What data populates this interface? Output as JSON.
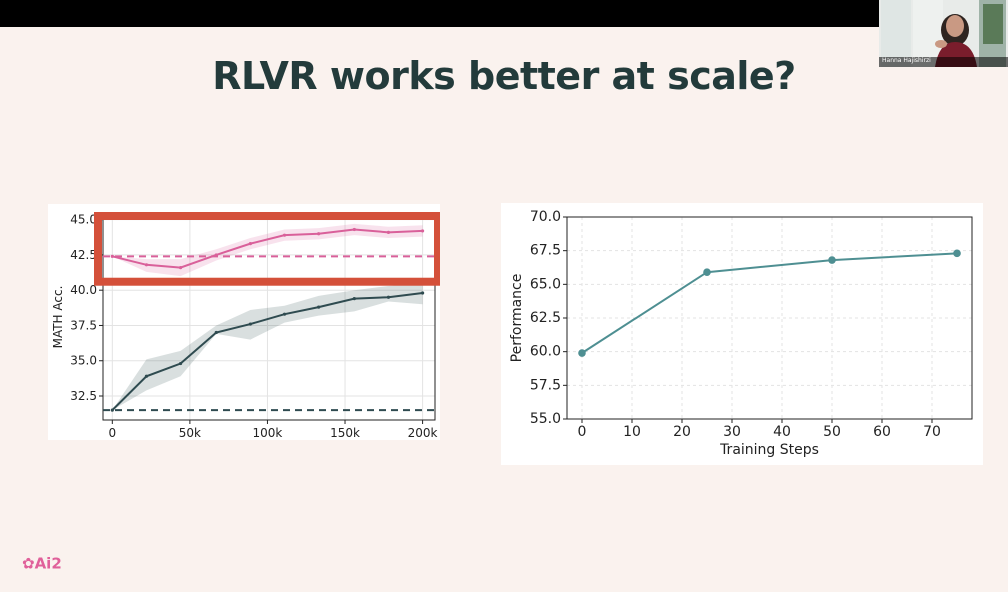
{
  "slide": {
    "title": "RLVR works better at scale?",
    "brand": "Ai2"
  },
  "webcam": {
    "name": "Hanna Hajishirzi"
  },
  "colors": {
    "background": "#faf2ee",
    "title": "#233b3b",
    "pink": "#d9609a",
    "dark": "#2f4b50",
    "teal": "#4e8f92",
    "highlight": "#d4503a"
  },
  "chart_data": [
    {
      "type": "line",
      "title": "",
      "xlabel": "",
      "ylabel": "MATH Acc.",
      "xlim": [
        -6,
        208
      ],
      "ylim": [
        30.8,
        45.4
      ],
      "xticks": [
        0,
        50,
        100,
        150,
        200
      ],
      "xticklabels": [
        "0",
        "50k",
        "100k",
        "150k",
        "200k"
      ],
      "yticks": [
        32.5,
        35.0,
        37.5,
        40.0,
        42.5,
        45.0
      ],
      "yticklabels": [
        "32.5",
        "35.0",
        "37.5",
        "40.0",
        "42.5",
        "45.0"
      ],
      "grid": true,
      "series": [
        {
          "name": "pink",
          "color": "#d9609a",
          "x": [
            0,
            22,
            44,
            67,
            89,
            111,
            133,
            156,
            178,
            200
          ],
          "y": [
            42.4,
            41.8,
            41.6,
            42.5,
            43.3,
            43.9,
            44.0,
            44.3,
            44.1,
            44.2
          ],
          "band_low": [
            42.4,
            41.3,
            41.0,
            42.1,
            42.9,
            43.5,
            43.6,
            43.9,
            43.7,
            43.8
          ],
          "band_high": [
            42.4,
            42.2,
            42.2,
            42.9,
            43.7,
            44.3,
            44.4,
            44.7,
            44.5,
            44.6
          ],
          "baseline": 42.4
        },
        {
          "name": "dark",
          "color": "#2f4b50",
          "x": [
            0,
            22,
            44,
            67,
            89,
            111,
            133,
            156,
            178,
            200
          ],
          "y": [
            31.5,
            33.9,
            34.8,
            37.0,
            37.6,
            38.3,
            38.8,
            39.4,
            39.5,
            39.8
          ],
          "band_low": [
            31.5,
            32.9,
            33.9,
            36.9,
            36.5,
            37.7,
            38.2,
            38.5,
            39.2,
            39.0
          ],
          "band_high": [
            31.5,
            35.1,
            35.7,
            37.5,
            38.6,
            38.9,
            39.6,
            40.0,
            40.3,
            40.5
          ],
          "baseline": 31.5
        }
      ],
      "annotation": "highlight box around pink series"
    },
    {
      "type": "line",
      "title": "",
      "xlabel": "Training Steps",
      "ylabel": "Performance",
      "xlim": [
        -3,
        78
      ],
      "ylim": [
        55.0,
        70.0
      ],
      "xticks": [
        0,
        10,
        20,
        30,
        40,
        50,
        60,
        70
      ],
      "xticklabels": [
        "0",
        "10",
        "20",
        "30",
        "40",
        "50",
        "60",
        "70"
      ],
      "yticks": [
        55.0,
        57.5,
        60.0,
        62.5,
        65.0,
        67.5,
        70.0
      ],
      "yticklabels": [
        "55.0",
        "57.5",
        "60.0",
        "62.5",
        "65.0",
        "67.5",
        "70.0"
      ],
      "grid": true,
      "series": [
        {
          "name": "Performance",
          "color": "#4e8f92",
          "x": [
            0,
            25,
            50,
            75
          ],
          "y": [
            59.9,
            65.9,
            66.8,
            67.3
          ]
        }
      ]
    }
  ]
}
